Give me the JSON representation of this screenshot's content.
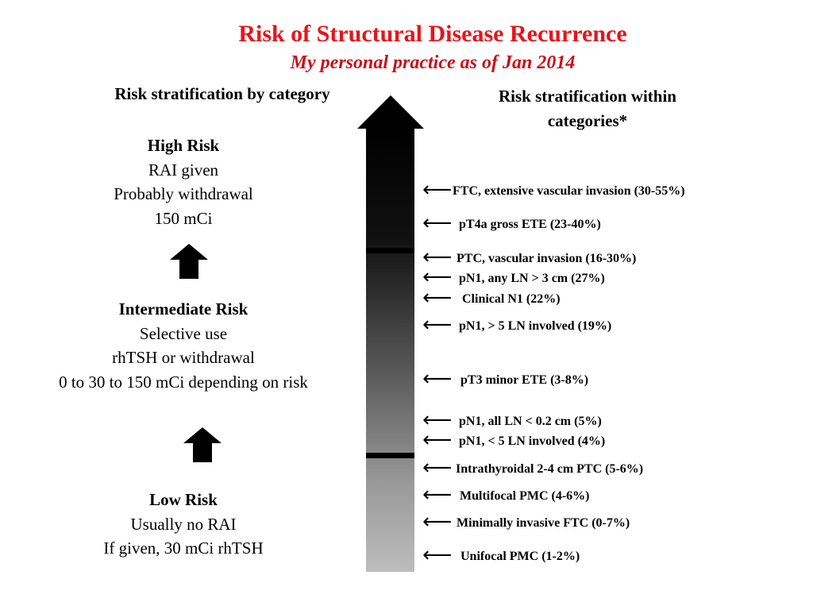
{
  "title": "Risk of Structural Disease Recurrence",
  "subtitle": "My personal practice as of Jan 2014",
  "left_heading": "Risk stratification by category",
  "right_heading": "Risk stratification within categories*",
  "colors": {
    "title": "#e8141b",
    "bar_top": "#000000",
    "bar_bottom": "#bdbdbd",
    "divider": "#000000"
  },
  "icons": {
    "category_arrow": "up-arrow-icon",
    "factor_arrow": "left-arrow-icon",
    "scale_arrow": "arrowhead-up-icon"
  },
  "risk_levels": {
    "high": {
      "title": "High Risk",
      "lines": [
        "RAI given",
        "Probably withdrawal",
        "150 mCi"
      ]
    },
    "intermediate": {
      "title": "Intermediate Risk",
      "lines": [
        "Selective use",
        "rhTSH or withdrawal",
        "0  to 30 to 150 mCi depending on risk"
      ]
    },
    "low": {
      "title": "Low Risk",
      "lines": [
        "Usually no RAI",
        "If given, 30 mCi rhTSH"
      ]
    }
  },
  "factors": [
    {
      "text": "FTC, extensive vascular invasion (30-55%)"
    },
    {
      "text": "pT4a gross ETE (23-40%)"
    },
    {
      "text": "PTC, vascular invasion (16-30%)"
    },
    {
      "text": "pN1, any LN > 3 cm (27%)"
    },
    {
      "text": "Clinical N1 (22%)"
    },
    {
      "text": "pN1, > 5 LN involved (19%)"
    },
    {
      "text": "pT3 minor ETE (3-8%)"
    },
    {
      "text": "pN1, all LN < 0.2 cm (5%)"
    },
    {
      "text": "pN1, < 5 LN involved (4%)"
    },
    {
      "text": "Intrathyroidal 2-4 cm PTC (5-6%)"
    },
    {
      "text": "Multifocal PMC (4-6%)"
    },
    {
      "text": "Minimally invasive FTC (0-7%)"
    },
    {
      "text": "Unifocal PMC (1-2%)"
    }
  ]
}
